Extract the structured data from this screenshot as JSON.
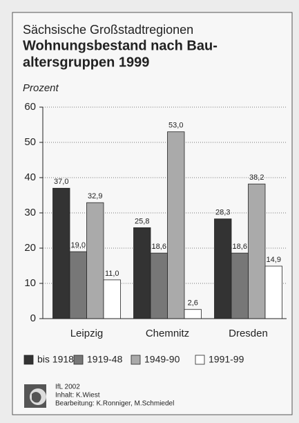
{
  "chart_data": {
    "type": "bar",
    "subtitle": "Sächsische Großstadtregionen",
    "title": [
      "Wohnungsbestand nach Bau-",
      "altersgruppen 1999"
    ],
    "y_label": "Prozent",
    "categories": [
      "Leipzig",
      "Chemnitz",
      "Dresden"
    ],
    "series": [
      {
        "name": "bis 1918",
        "color": "#333333",
        "values": [
          37.0,
          25.8,
          28.3
        ],
        "value_labels": [
          "37,0",
          "25,8",
          "28,3"
        ]
      },
      {
        "name": "1919-48",
        "color": "#777777",
        "values": [
          19.0,
          18.6,
          18.6
        ],
        "value_labels": [
          "19,0",
          "18,6",
          "18,6"
        ]
      },
      {
        "name": "1949-90",
        "color": "#aaaaaa",
        "values": [
          32.9,
          53.0,
          38.2
        ],
        "value_labels": [
          "32,9",
          "53,0",
          "38,2"
        ]
      },
      {
        "name": "1991-99",
        "color": "#ffffff",
        "values": [
          11.0,
          2.6,
          14.9
        ],
        "value_labels": [
          "11,0",
          "2,6",
          "14,9"
        ]
      }
    ],
    "ylim": [
      0,
      60
    ],
    "yticks": [
      0,
      10,
      20,
      30,
      40,
      50,
      60
    ],
    "grid": true,
    "legend": "bottom",
    "footer": [
      "IfL 2002",
      "Inhalt: K.Wiest",
      "Bearbeitung: K.Ronniger, M.Schmiedel"
    ]
  }
}
